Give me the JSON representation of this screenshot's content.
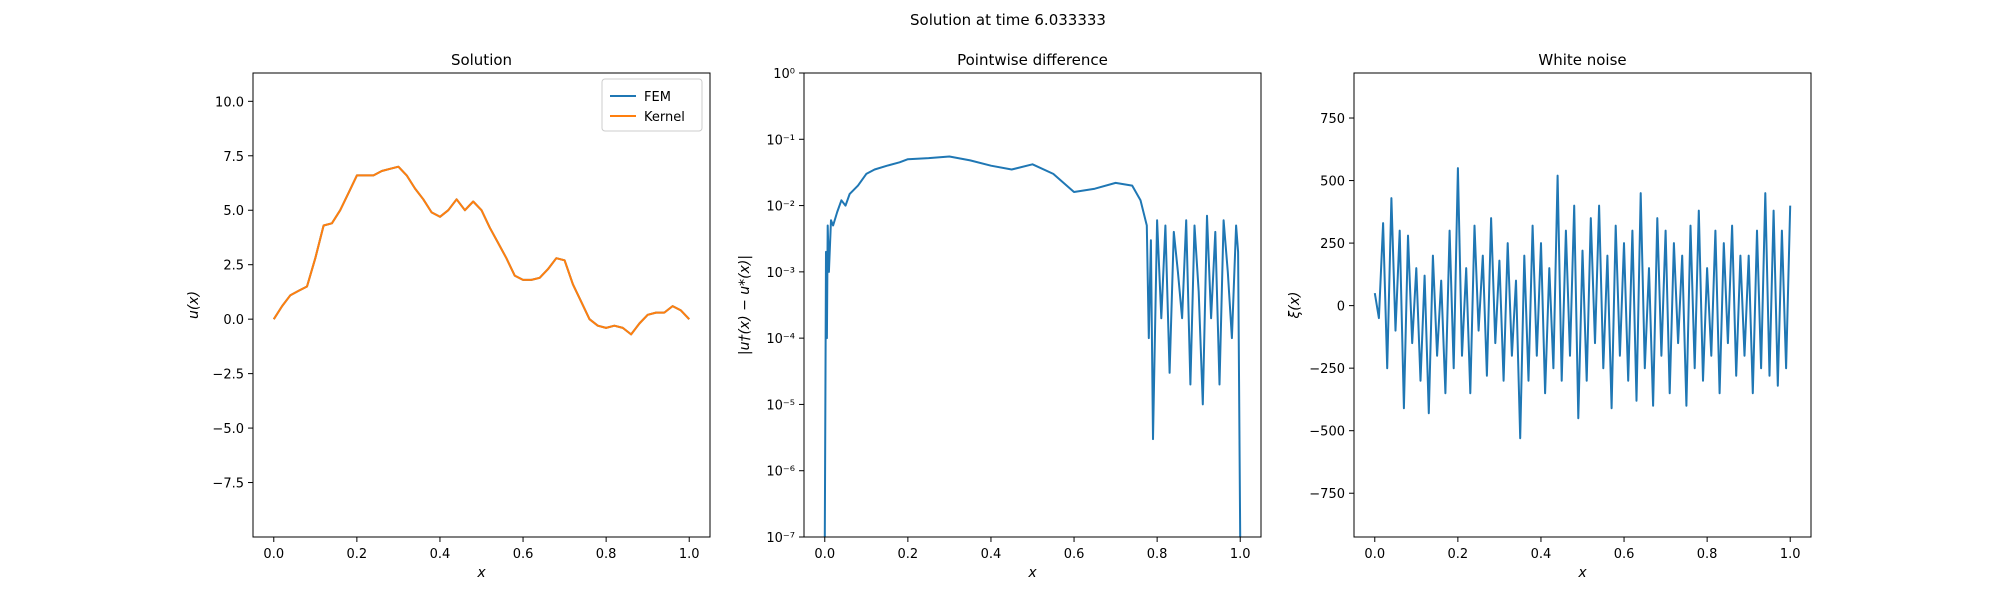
{
  "figure": {
    "suptitle": "Solution at time 6.033333"
  },
  "colors": {
    "fem": "#1f77b4",
    "kernel": "#ff7f0e",
    "series": "#1f77b4",
    "axes": "#000000",
    "background": "#ffffff"
  },
  "chart_data": [
    {
      "type": "line",
      "title": "Solution",
      "xlabel": "x",
      "ylabel": "u(x)",
      "xlim": [
        -0.05,
        1.05
      ],
      "ylim": [
        -10.0,
        11.3
      ],
      "xticks": [
        0.0,
        0.2,
        0.4,
        0.6,
        0.8,
        1.0
      ],
      "xtick_labels": [
        "0.0",
        "0.2",
        "0.4",
        "0.6",
        "0.8",
        "1.0"
      ],
      "yticks": [
        -7.5,
        -5.0,
        -2.5,
        0.0,
        2.5,
        5.0,
        7.5,
        10.0
      ],
      "ytick_labels": [
        "−7.5",
        "−5.0",
        "−2.5",
        "0.0",
        "2.5",
        "5.0",
        "7.5",
        "10.0"
      ],
      "legend": {
        "position": "top-right",
        "entries": [
          "FEM",
          "Kernel"
        ]
      },
      "grid": false,
      "x": [
        0.0,
        0.02,
        0.04,
        0.06,
        0.08,
        0.1,
        0.12,
        0.14,
        0.16,
        0.18,
        0.2,
        0.22,
        0.24,
        0.26,
        0.28,
        0.3,
        0.32,
        0.34,
        0.36,
        0.38,
        0.4,
        0.42,
        0.44,
        0.46,
        0.48,
        0.5,
        0.52,
        0.54,
        0.56,
        0.58,
        0.6,
        0.62,
        0.64,
        0.66,
        0.68,
        0.7,
        0.72,
        0.74,
        0.76,
        0.78,
        0.8,
        0.82,
        0.84,
        0.86,
        0.88,
        0.9,
        0.92,
        0.94,
        0.96,
        0.98,
        1.0
      ],
      "series": [
        {
          "name": "FEM",
          "values": [
            0.0,
            0.6,
            1.1,
            1.3,
            1.5,
            2.8,
            4.3,
            4.4,
            5.0,
            5.8,
            6.6,
            6.6,
            6.6,
            6.8,
            6.9,
            7.0,
            6.6,
            6.0,
            5.5,
            4.9,
            4.7,
            5.0,
            5.5,
            5.0,
            5.4,
            5.0,
            4.2,
            3.5,
            2.8,
            2.0,
            1.8,
            1.8,
            1.9,
            2.3,
            2.8,
            2.7,
            1.6,
            0.8,
            0.0,
            -0.3,
            -0.4,
            -0.3,
            -0.4,
            -0.7,
            -0.2,
            0.2,
            0.3,
            0.3,
            0.6,
            0.4,
            0.0
          ]
        },
        {
          "name": "Kernel",
          "values": [
            0.0,
            0.6,
            1.1,
            1.3,
            1.5,
            2.8,
            4.3,
            4.4,
            5.0,
            5.8,
            6.6,
            6.6,
            6.6,
            6.8,
            6.9,
            7.0,
            6.6,
            6.0,
            5.5,
            4.9,
            4.7,
            5.0,
            5.5,
            5.0,
            5.4,
            5.0,
            4.2,
            3.5,
            2.8,
            2.0,
            1.8,
            1.8,
            1.9,
            2.3,
            2.8,
            2.7,
            1.6,
            0.8,
            0.0,
            -0.3,
            -0.4,
            -0.3,
            -0.4,
            -0.7,
            -0.2,
            0.2,
            0.3,
            0.3,
            0.6,
            0.4,
            0.0
          ]
        }
      ]
    },
    {
      "type": "line",
      "title": "Pointwise difference",
      "xlabel": "x",
      "ylabel": "|u†(x) − u*(x)|",
      "xlim": [
        -0.05,
        1.05
      ],
      "ylim": [
        1e-07,
        1.0
      ],
      "yscale": "log",
      "xticks": [
        0.0,
        0.2,
        0.4,
        0.6,
        0.8,
        1.0
      ],
      "xtick_labels": [
        "0.0",
        "0.2",
        "0.4",
        "0.6",
        "0.8",
        "1.0"
      ],
      "yticks": [
        1e-07,
        1e-06,
        1e-05,
        0.0001,
        0.001,
        0.01,
        0.1,
        1.0
      ],
      "ytick_labels": [
        "10⁻⁷",
        "10⁻⁶",
        "10⁻⁵",
        "10⁻⁴",
        "10⁻³",
        "10⁻²",
        "10⁻¹",
        "10⁰"
      ],
      "grid": false,
      "x": [
        0.0,
        0.003,
        0.005,
        0.007,
        0.01,
        0.015,
        0.02,
        0.03,
        0.04,
        0.05,
        0.06,
        0.08,
        0.1,
        0.12,
        0.15,
        0.18,
        0.2,
        0.25,
        0.3,
        0.35,
        0.4,
        0.45,
        0.5,
        0.55,
        0.6,
        0.65,
        0.7,
        0.74,
        0.76,
        0.775,
        0.78,
        0.785,
        0.79,
        0.8,
        0.81,
        0.82,
        0.83,
        0.84,
        0.85,
        0.86,
        0.87,
        0.88,
        0.89,
        0.9,
        0.91,
        0.92,
        0.93,
        0.94,
        0.95,
        0.96,
        0.97,
        0.98,
        0.99,
        0.995,
        1.0
      ],
      "values": [
        1e-07,
        0.002,
        0.0001,
        0.005,
        0.001,
        0.006,
        0.005,
        0.008,
        0.012,
        0.01,
        0.015,
        0.02,
        0.03,
        0.035,
        0.04,
        0.045,
        0.05,
        0.052,
        0.055,
        0.048,
        0.04,
        0.035,
        0.042,
        0.03,
        0.016,
        0.018,
        0.022,
        0.02,
        0.012,
        0.005,
        0.0001,
        0.003,
        3e-06,
        0.006,
        0.0002,
        0.005,
        3e-05,
        0.004,
        0.001,
        0.0002,
        0.006,
        2e-05,
        0.005,
        0.0005,
        1e-05,
        0.007,
        0.0002,
        0.004,
        2e-05,
        0.006,
        0.001,
        0.0001,
        0.005,
        0.002,
        1e-07
      ]
    },
    {
      "type": "line",
      "title": "White noise",
      "xlabel": "x",
      "ylabel": "ξ(x)",
      "xlim": [
        -0.05,
        1.05
      ],
      "ylim": [
        -925,
        930
      ],
      "xticks": [
        0.0,
        0.2,
        0.4,
        0.6,
        0.8,
        1.0
      ],
      "xtick_labels": [
        "0.0",
        "0.2",
        "0.4",
        "0.6",
        "0.8",
        "1.0"
      ],
      "yticks": [
        -750,
        -500,
        -250,
        0,
        250,
        500,
        750
      ],
      "ytick_labels": [
        "−750",
        "−500",
        "−250",
        "0",
        "250",
        "500",
        "750"
      ],
      "grid": false,
      "x": [
        0.0,
        0.01,
        0.02,
        0.03,
        0.04,
        0.05,
        0.06,
        0.07,
        0.08,
        0.09,
        0.1,
        0.11,
        0.12,
        0.13,
        0.14,
        0.15,
        0.16,
        0.17,
        0.18,
        0.19,
        0.2,
        0.21,
        0.22,
        0.23,
        0.24,
        0.25,
        0.26,
        0.27,
        0.28,
        0.29,
        0.3,
        0.31,
        0.32,
        0.33,
        0.34,
        0.35,
        0.36,
        0.37,
        0.38,
        0.39,
        0.4,
        0.41,
        0.42,
        0.43,
        0.44,
        0.45,
        0.46,
        0.47,
        0.48,
        0.49,
        0.5,
        0.51,
        0.52,
        0.53,
        0.54,
        0.55,
        0.56,
        0.57,
        0.58,
        0.59,
        0.6,
        0.61,
        0.62,
        0.63,
        0.64,
        0.65,
        0.66,
        0.67,
        0.68,
        0.69,
        0.7,
        0.71,
        0.72,
        0.73,
        0.74,
        0.75,
        0.76,
        0.77,
        0.78,
        0.79,
        0.8,
        0.81,
        0.82,
        0.83,
        0.84,
        0.85,
        0.86,
        0.87,
        0.88,
        0.89,
        0.9,
        0.91,
        0.92,
        0.93,
        0.94,
        0.95,
        0.96,
        0.97,
        0.98,
        0.99,
        1.0
      ],
      "values": [
        50,
        -50,
        330,
        -250,
        430,
        -100,
        300,
        -410,
        280,
        -150,
        150,
        -300,
        120,
        -430,
        200,
        -200,
        100,
        -350,
        300,
        -250,
        550,
        -200,
        150,
        -350,
        320,
        -100,
        200,
        -280,
        350,
        -150,
        180,
        -300,
        250,
        -200,
        100,
        -530,
        200,
        -300,
        320,
        -200,
        250,
        -350,
        150,
        -250,
        520,
        -300,
        300,
        -200,
        400,
        -450,
        220,
        -300,
        350,
        -150,
        400,
        -250,
        200,
        -410,
        320,
        -200,
        250,
        -300,
        300,
        -380,
        450,
        -250,
        150,
        -400,
        350,
        -200,
        300,
        -350,
        250,
        -150,
        200,
        -400,
        320,
        -250,
        380,
        -300,
        150,
        -200,
        300,
        -350,
        250,
        -150,
        320,
        -280,
        200,
        -200,
        200,
        -350,
        300,
        -250,
        450,
        -280,
        380,
        -320,
        300,
        -250,
        400
      ]
    }
  ]
}
